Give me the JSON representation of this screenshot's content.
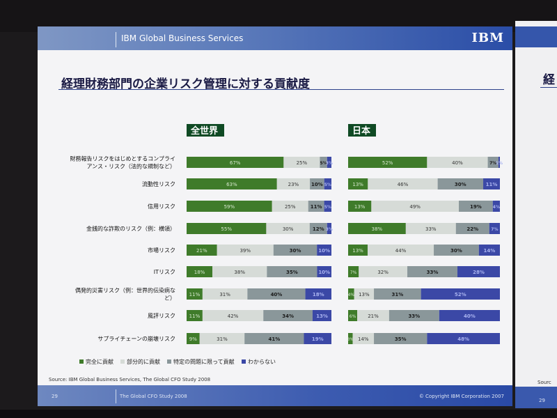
{
  "header": {
    "title": "IBM Global Business Services",
    "logo": "IBM"
  },
  "slide_title": "経理財務部門の企業リスク管理に対する貢献度",
  "footer": {
    "source": "Source: IBM Global Business Services, The Global CFO Study 2008",
    "page": "29",
    "study": "The Global CFO Study 2008",
    "copyright": "© Copyright IBM Corporation 2007"
  },
  "next_slide": {
    "title_fragment": "経",
    "source_fragment": "Sourc",
    "page": "29"
  },
  "colors": {
    "full": "#3f7b2a",
    "partial": "#d6dbd7",
    "specific": "#8a979a",
    "unknown": "#3b48a6"
  },
  "chart_data": {
    "type": "bar",
    "stacked": true,
    "orientation": "horizontal",
    "categories": [
      "財務報告リスクをはじめとするコンプライアンス・リスク（法的な規制など）",
      "流動性リスク",
      "信用リスク",
      "金銭的な詐欺のリスク（例：横領）",
      "市場リスク",
      "ITリスク",
      "偶発的災害リスク（例：世界的伝染病など）",
      "風評リスク",
      "サプライチェーンの崩壊リスク"
    ],
    "legend": [
      "完全に貢献",
      "部分的に貢献",
      "特定の問題に限って貢献",
      "わからない"
    ],
    "legend_position": "bottom",
    "panels": [
      {
        "title": "全世界",
        "series": [
          {
            "name": "完全に貢献",
            "values": [
              67,
              63,
              59,
              55,
              21,
              18,
              11,
              11,
              9
            ]
          },
          {
            "name": "部分的に貢献",
            "values": [
              25,
              23,
              25,
              30,
              39,
              38,
              31,
              42,
              31
            ]
          },
          {
            "name": "特定の問題に限って貢献",
            "values": [
              5,
              10,
              11,
              12,
              30,
              35,
              40,
              34,
              41
            ]
          },
          {
            "name": "わからない",
            "values": [
              3,
              5,
              5,
              3,
              10,
              10,
              18,
              13,
              19
            ]
          }
        ]
      },
      {
        "title": "日本",
        "series": [
          {
            "name": "完全に貢献",
            "values": [
              52,
              13,
              13,
              38,
              13,
              7,
              4,
              6,
              3
            ]
          },
          {
            "name": "部分的に貢献",
            "values": [
              40,
              46,
              49,
              33,
              44,
              32,
              13,
              21,
              14
            ]
          },
          {
            "name": "特定の問題に限って貢献",
            "values": [
              7,
              30,
              19,
              22,
              30,
              33,
              31,
              33,
              35
            ]
          },
          {
            "name": "わからない",
            "values": [
              1,
              11,
              4,
              7,
              14,
              28,
              52,
              40,
              48
            ]
          }
        ]
      }
    ]
  }
}
